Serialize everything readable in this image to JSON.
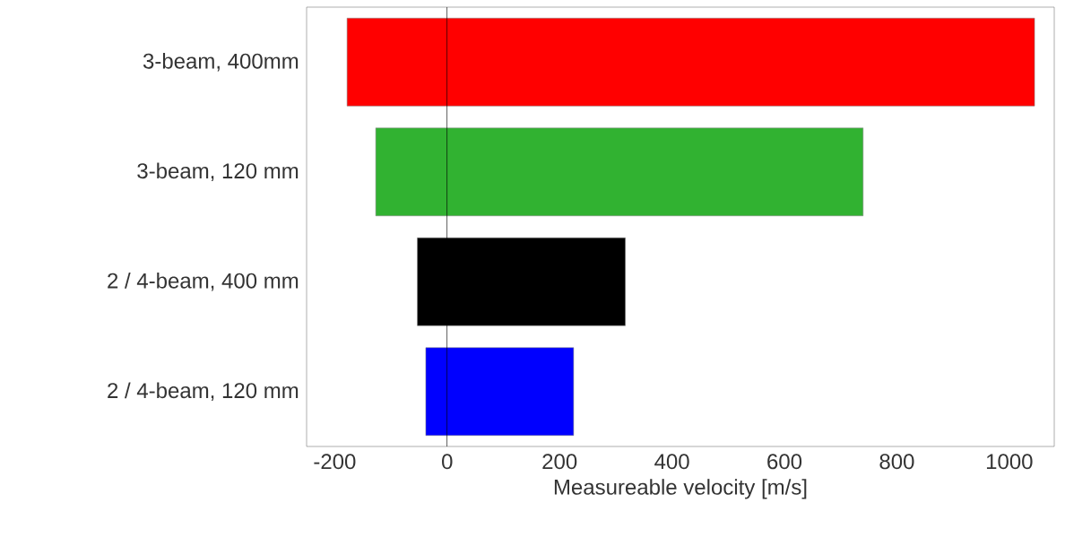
{
  "chart_data": {
    "type": "bar",
    "orientation": "horizontal",
    "xlabel": "Measureable velocity [m/s]",
    "categories": [
      "3-beam, 400mm",
      "3-beam, 120 mm",
      "2 / 4-beam, 400 mm",
      "2 / 4-beam, 120 mm"
    ],
    "base": [
      -178,
      -127,
      -53,
      -38
    ],
    "values": [
      1223,
      867,
      370,
      263
    ],
    "colors": [
      "#ff0000",
      "#31b231",
      "#000000",
      "#0000ff"
    ],
    "xlim": [
      -250,
      1080
    ],
    "xticks": [
      -200,
      0,
      200,
      400,
      600,
      800,
      1000
    ],
    "ref_lines": [
      {
        "axis": "x",
        "value": 0,
        "color": "#000000"
      }
    ]
  }
}
